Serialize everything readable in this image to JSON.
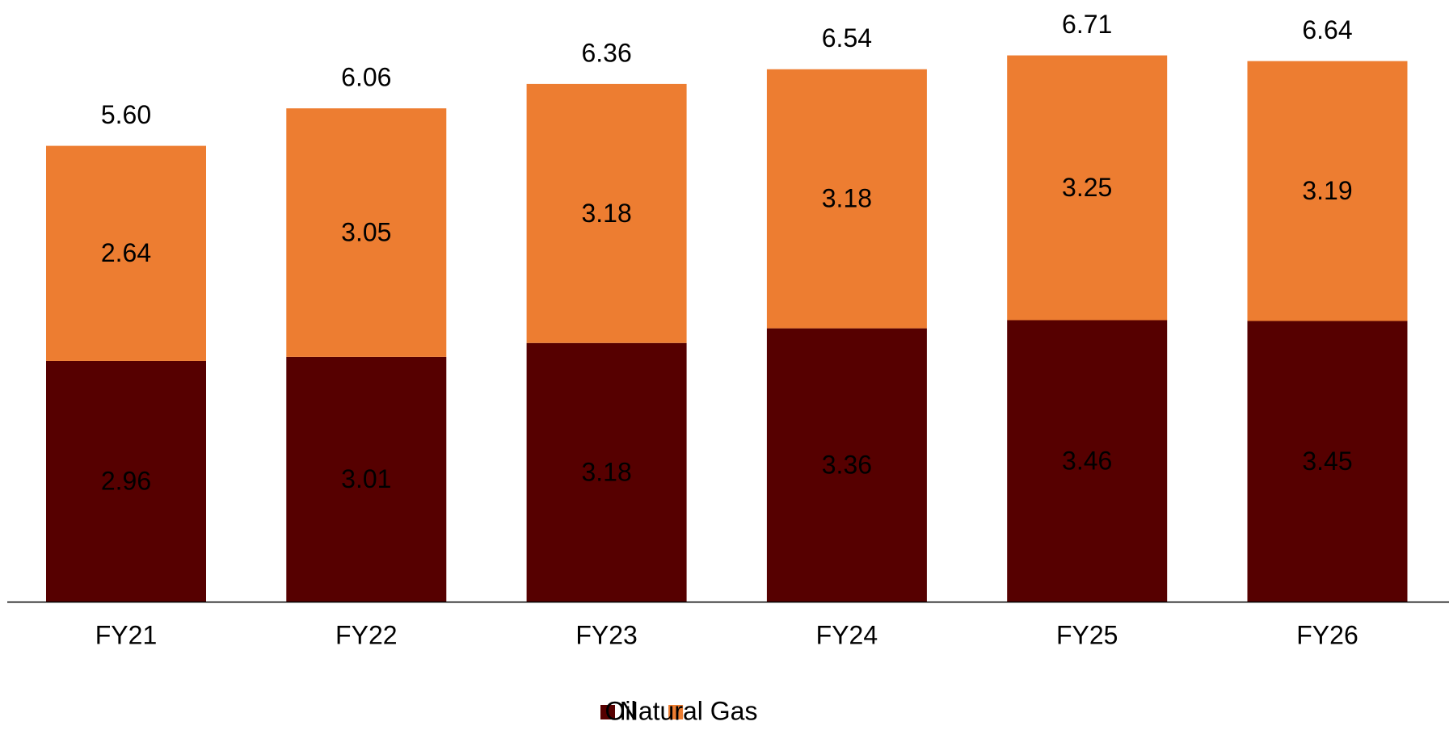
{
  "chart_data": {
    "type": "stacked_bar",
    "categories": [
      "FY21",
      "FY22",
      "FY23",
      "FY24",
      "FY25",
      "FY26"
    ],
    "series": [
      {
        "name": "Oil",
        "color": "#560000",
        "values": [
          2.96,
          3.01,
          3.18,
          3.36,
          3.46,
          3.45
        ]
      },
      {
        "name": "Natural Gas",
        "color": "#ED7D31",
        "values": [
          2.64,
          3.05,
          3.18,
          3.18,
          3.25,
          3.19
        ]
      }
    ],
    "totals": [
      5.6,
      6.06,
      6.36,
      6.54,
      6.71,
      6.64
    ],
    "total_labels": [
      "5.60",
      "6.06",
      "6.36",
      "6.54",
      "6.71",
      "6.64"
    ],
    "legend": "bottom"
  }
}
